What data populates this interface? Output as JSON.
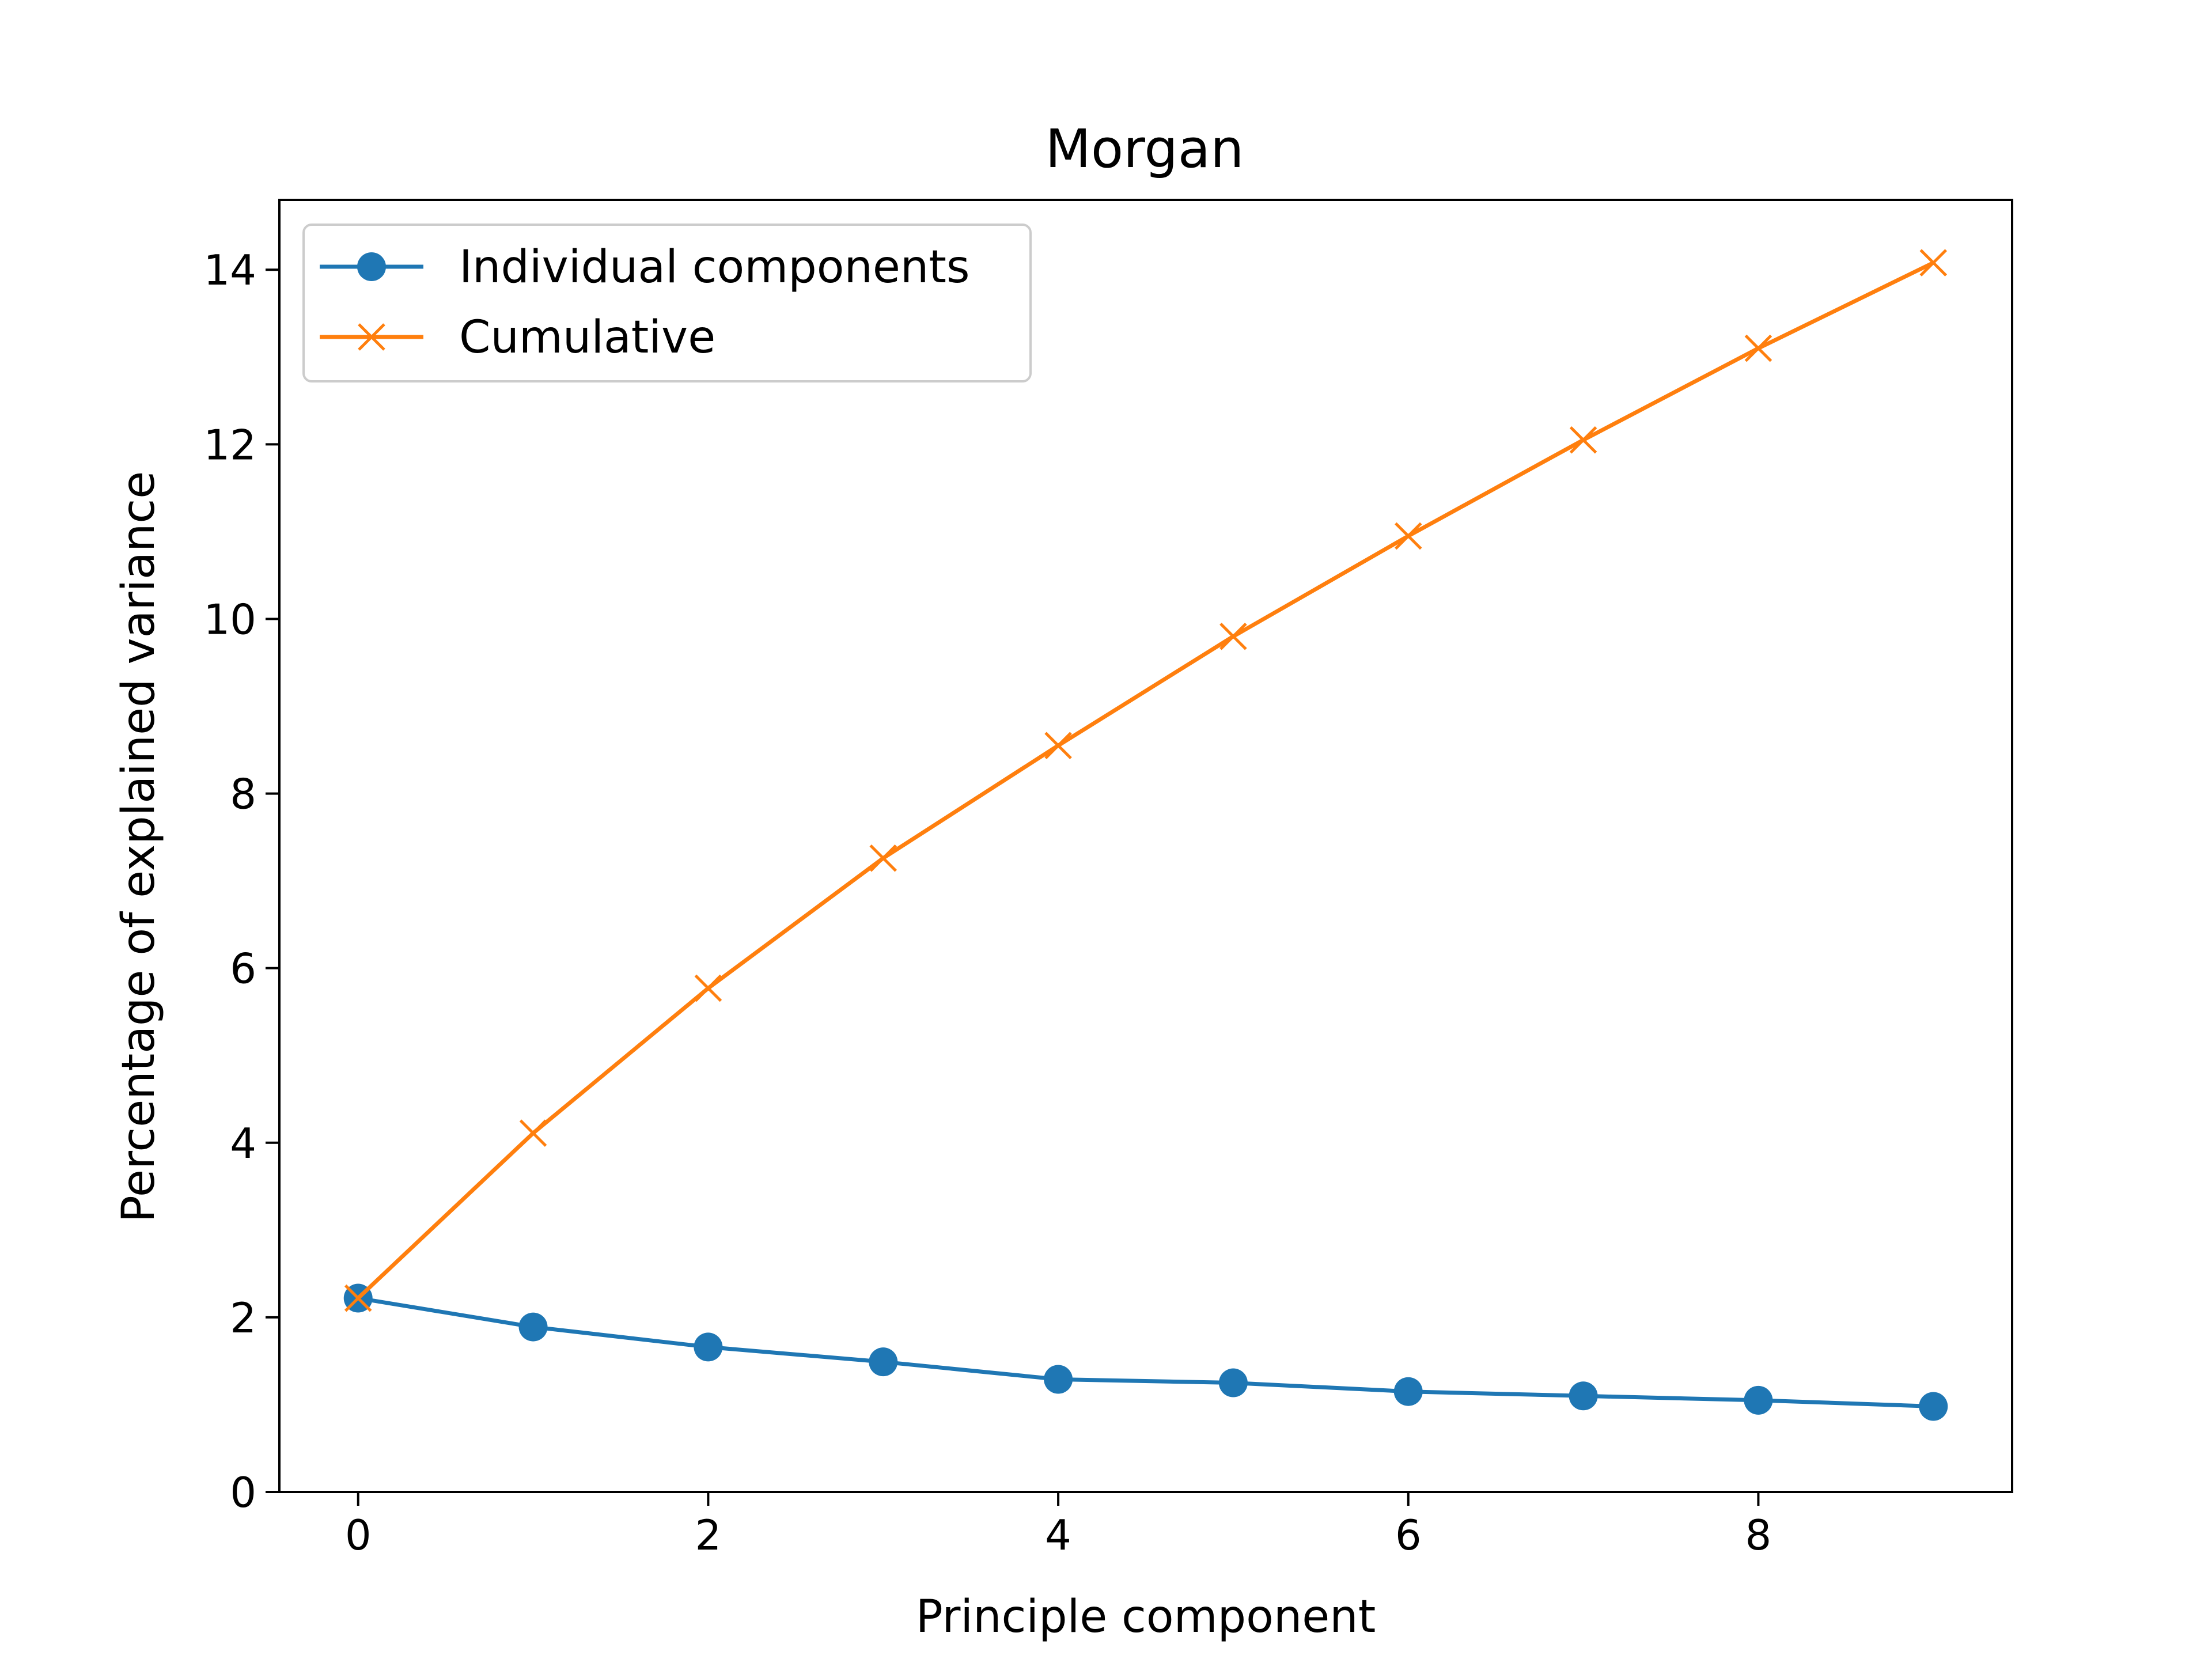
{
  "chart_data": {
    "type": "line",
    "title": "Morgan",
    "xlabel": "Principle component",
    "ylabel": "Percentage of explained variance",
    "xlim": [
      -0.45,
      9.45
    ],
    "ylim": [
      0,
      14.8
    ],
    "xticks": [
      0,
      2,
      4,
      6,
      8
    ],
    "yticks": [
      0,
      2,
      4,
      6,
      8,
      10,
      12,
      14
    ],
    "grid": false,
    "legend_position": "top-left",
    "x": [
      0,
      1,
      2,
      3,
      4,
      5,
      6,
      7,
      8,
      9
    ],
    "series": [
      {
        "name": "Individual components",
        "marker": "circle",
        "color": "#1f77b4",
        "values": [
          2.22,
          1.89,
          1.66,
          1.49,
          1.29,
          1.25,
          1.15,
          1.1,
          1.05,
          0.98
        ]
      },
      {
        "name": "Cumulative",
        "marker": "x",
        "color": "#ff7f0e",
        "values": [
          2.22,
          4.11,
          5.77,
          7.26,
          8.55,
          9.8,
          10.95,
          12.05,
          13.1,
          14.08
        ]
      }
    ]
  }
}
